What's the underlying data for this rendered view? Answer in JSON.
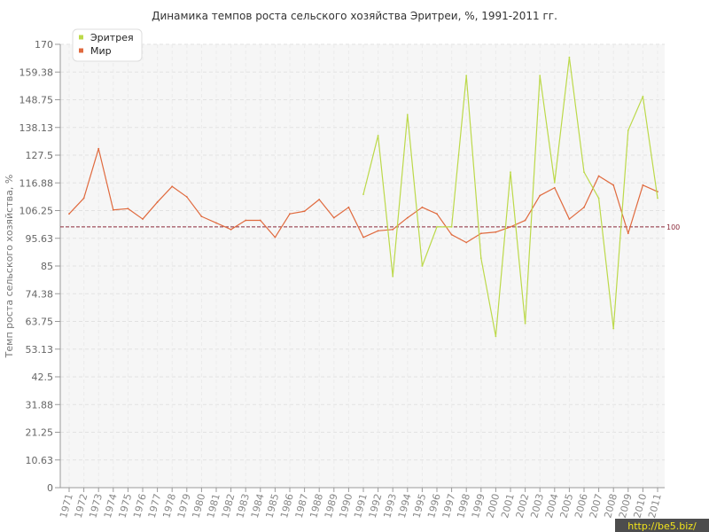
{
  "chart_data": {
    "type": "line",
    "title": "Динамика темпов роста сельского хозяйства Эритреи, %, 1991-2011 гг.",
    "ylabel": "Темп роста сельского хозяйства, %",
    "xlabel": "",
    "ylim": [
      0,
      170
    ],
    "y_ticks": [
      "0",
      "10.63",
      "21.25",
      "31.88",
      "42.5",
      "53.13",
      "63.75",
      "74.38",
      "85",
      "95.63",
      "106.25",
      "116.88",
      "127.5",
      "138.13",
      "148.75",
      "159.38",
      "170"
    ],
    "categories": [
      "1971",
      "1972",
      "1973",
      "1974",
      "1975",
      "1976",
      "1977",
      "1978",
      "1979",
      "1980",
      "1981",
      "1982",
      "1983",
      "1984",
      "1985",
      "1986",
      "1987",
      "1988",
      "1989",
      "1990",
      "1991",
      "1992",
      "1993",
      "1994",
      "1995",
      "1996",
      "1997",
      "1998",
      "1999",
      "2000",
      "2001",
      "2002",
      "2003",
      "2004",
      "2005",
      "2006",
      "2007",
      "2008",
      "2009",
      "2010",
      "2011"
    ],
    "series": [
      {
        "name": "Эритрея",
        "color": "#bcd94a",
        "values": [
          null,
          null,
          null,
          null,
          null,
          null,
          null,
          null,
          null,
          null,
          null,
          null,
          null,
          null,
          null,
          null,
          null,
          null,
          null,
          null,
          112.5,
          135,
          81,
          143,
          85,
          100,
          100,
          158,
          88,
          58,
          121,
          63,
          158,
          117,
          165,
          121,
          111,
          61,
          137,
          150,
          111
        ]
      },
      {
        "name": "Мир",
        "color": "#e06a3e",
        "values": [
          105,
          111,
          130,
          106.5,
          107,
          103,
          109.5,
          115.5,
          111.5,
          104,
          101.5,
          99,
          102.5,
          102.5,
          96,
          105,
          106,
          110.5,
          103.5,
          107.5,
          96,
          98.5,
          99,
          103.5,
          107.5,
          105,
          97,
          94,
          97.5,
          98,
          100,
          102.5,
          112,
          115,
          103,
          107.5,
          119.5,
          116,
          97.5,
          116,
          113.5
        ]
      }
    ],
    "reference_line": {
      "value": 100,
      "label": "100",
      "color": "#8b2a3a"
    },
    "legend_position": "top-left",
    "grid": true
  },
  "watermark": "http://be5.biz/"
}
